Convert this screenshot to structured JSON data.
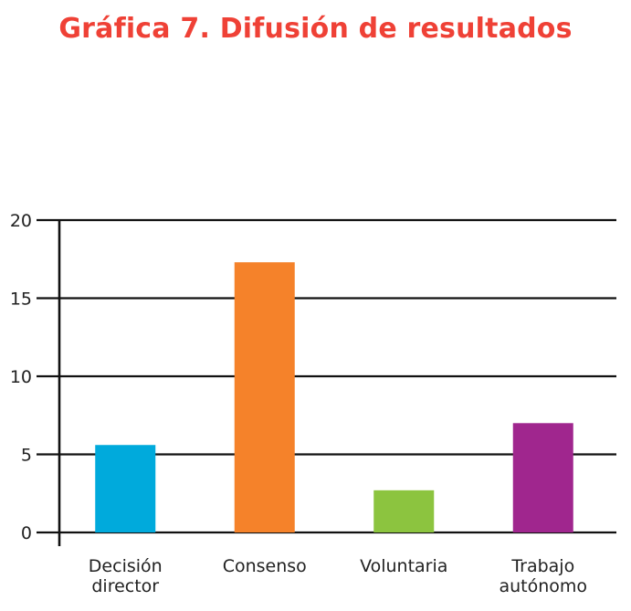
{
  "chart_data": {
    "type": "bar",
    "title": "Gráfica 7. Difusión de resultados",
    "xlabel": "",
    "ylabel": "",
    "categories": [
      [
        "Decisión",
        "director"
      ],
      [
        "Consenso"
      ],
      [
        "Voluntaria"
      ],
      [
        "Trabajo",
        "autónomo"
      ]
    ],
    "values": [
      5.6,
      17.3,
      2.7,
      7.0
    ],
    "colors": [
      "#00aadc",
      "#f5822a",
      "#8cc43f",
      "#a0268e"
    ],
    "ylim": [
      0,
      20
    ],
    "yticks": [
      0,
      5,
      10,
      15,
      20
    ],
    "grid": true,
    "legend": "none"
  },
  "colors": {
    "title": "#ef4136",
    "axis": "#111111",
    "grid": "#111111"
  }
}
